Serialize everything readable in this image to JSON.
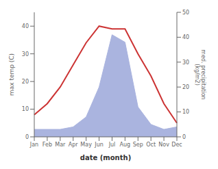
{
  "chart_data": {
    "type": "line",
    "xlabel": "date (month)",
    "ylabel": "max temp (C)",
    "y2label": "med. precipitation\n(kg/m2)",
    "categories": [
      "Jan",
      "Feb",
      "Mar",
      "Apr",
      "May",
      "Jun",
      "Jul",
      "Aug",
      "Sep",
      "Oct",
      "Nov",
      "Dec"
    ],
    "series": [
      {
        "type": "area",
        "axis": "y2",
        "color": "#aab4df",
        "values": [
          3,
          3,
          3,
          4,
          8,
          20,
          41,
          38,
          12,
          5,
          3,
          4
        ]
      },
      {
        "type": "line",
        "color": "#cc3333",
        "values": [
          8,
          12,
          18,
          26,
          34,
          40,
          39,
          39,
          30,
          22,
          12,
          5
        ]
      }
    ],
    "ylim": [
      0,
      45
    ],
    "yticks": [
      0,
      10,
      20,
      30,
      40
    ],
    "y2lim": [
      0,
      50
    ],
    "y2ticks": [
      0,
      10,
      20,
      30,
      40,
      50
    ]
  }
}
